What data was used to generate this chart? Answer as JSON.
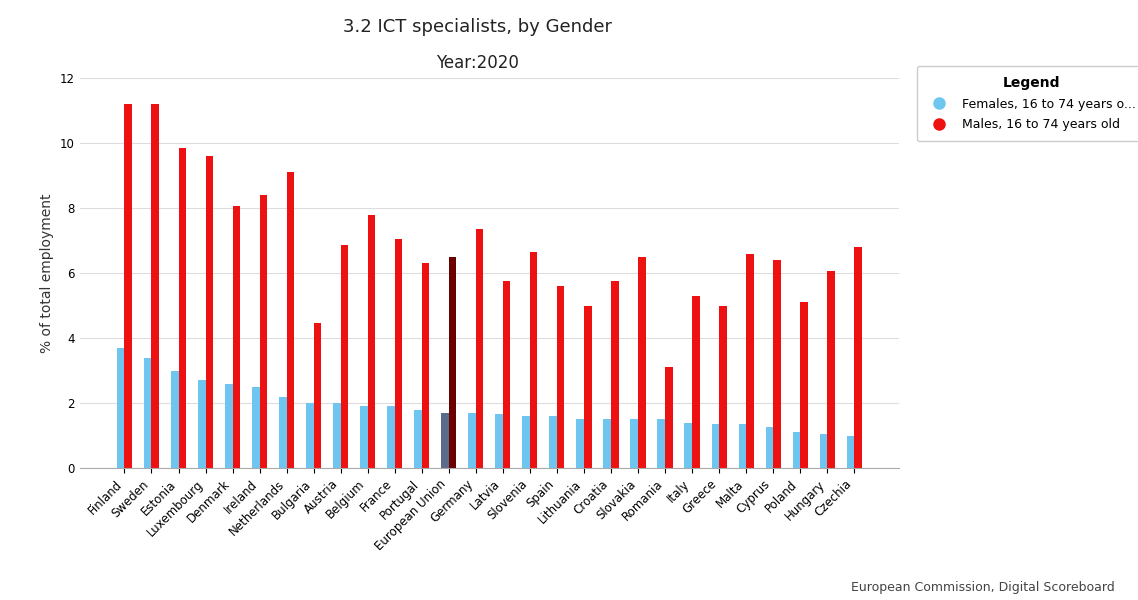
{
  "title": "3.2 ICT specialists, by Gender",
  "subtitle": "Year:2020",
  "ylabel": "% of total employment",
  "source": "European Commission, Digital Scoreboard",
  "legend_title": "Legend",
  "legend_labels": [
    "Females, 16 to 74 years o...",
    "Males, 16 to 74 years old"
  ],
  "countries": [
    "Finland",
    "Sweden",
    "Estonia",
    "Luxembourg",
    "Denmark",
    "Ireland",
    "Netherlands",
    "Bulgaria",
    "Austria",
    "Belgium",
    "France",
    "Portugal",
    "European Union",
    "Germany",
    "Latvia",
    "Slovenia",
    "Spain",
    "Lithuania",
    "Croatia",
    "Slovakia",
    "Romania",
    "Italy",
    "Greece",
    "Malta",
    "Cyprus",
    "Poland",
    "Hungary",
    "Czechia"
  ],
  "females": [
    3.7,
    3.4,
    3.0,
    2.7,
    2.6,
    2.5,
    2.2,
    2.0,
    2.0,
    1.9,
    1.9,
    1.8,
    1.7,
    1.7,
    1.65,
    1.6,
    1.6,
    1.5,
    1.5,
    1.5,
    1.5,
    1.4,
    1.35,
    1.35,
    1.25,
    1.1,
    1.05,
    1.0
  ],
  "males": [
    11.2,
    11.2,
    9.85,
    9.6,
    8.05,
    8.4,
    9.1,
    4.45,
    6.85,
    7.8,
    7.05,
    6.3,
    6.5,
    7.35,
    5.75,
    6.65,
    5.6,
    5.0,
    5.75,
    6.5,
    3.1,
    5.3,
    5.0,
    6.6,
    6.4,
    5.1,
    6.05,
    6.8
  ],
  "bar_width": 0.28,
  "ylim": [
    0,
    12
  ],
  "yticks": [
    0,
    2,
    4,
    6,
    8,
    10,
    12
  ],
  "female_color": "#6EC6F0",
  "male_color": "#EE1111",
  "eu_male_color": "#6B0000",
  "eu_female_color": "#5A6B8C",
  "background_color": "#FFFFFF",
  "grid_color": "#DDDDDD",
  "title_fontsize": 13,
  "subtitle_fontsize": 12,
  "ylabel_fontsize": 10,
  "tick_fontsize": 8.5
}
